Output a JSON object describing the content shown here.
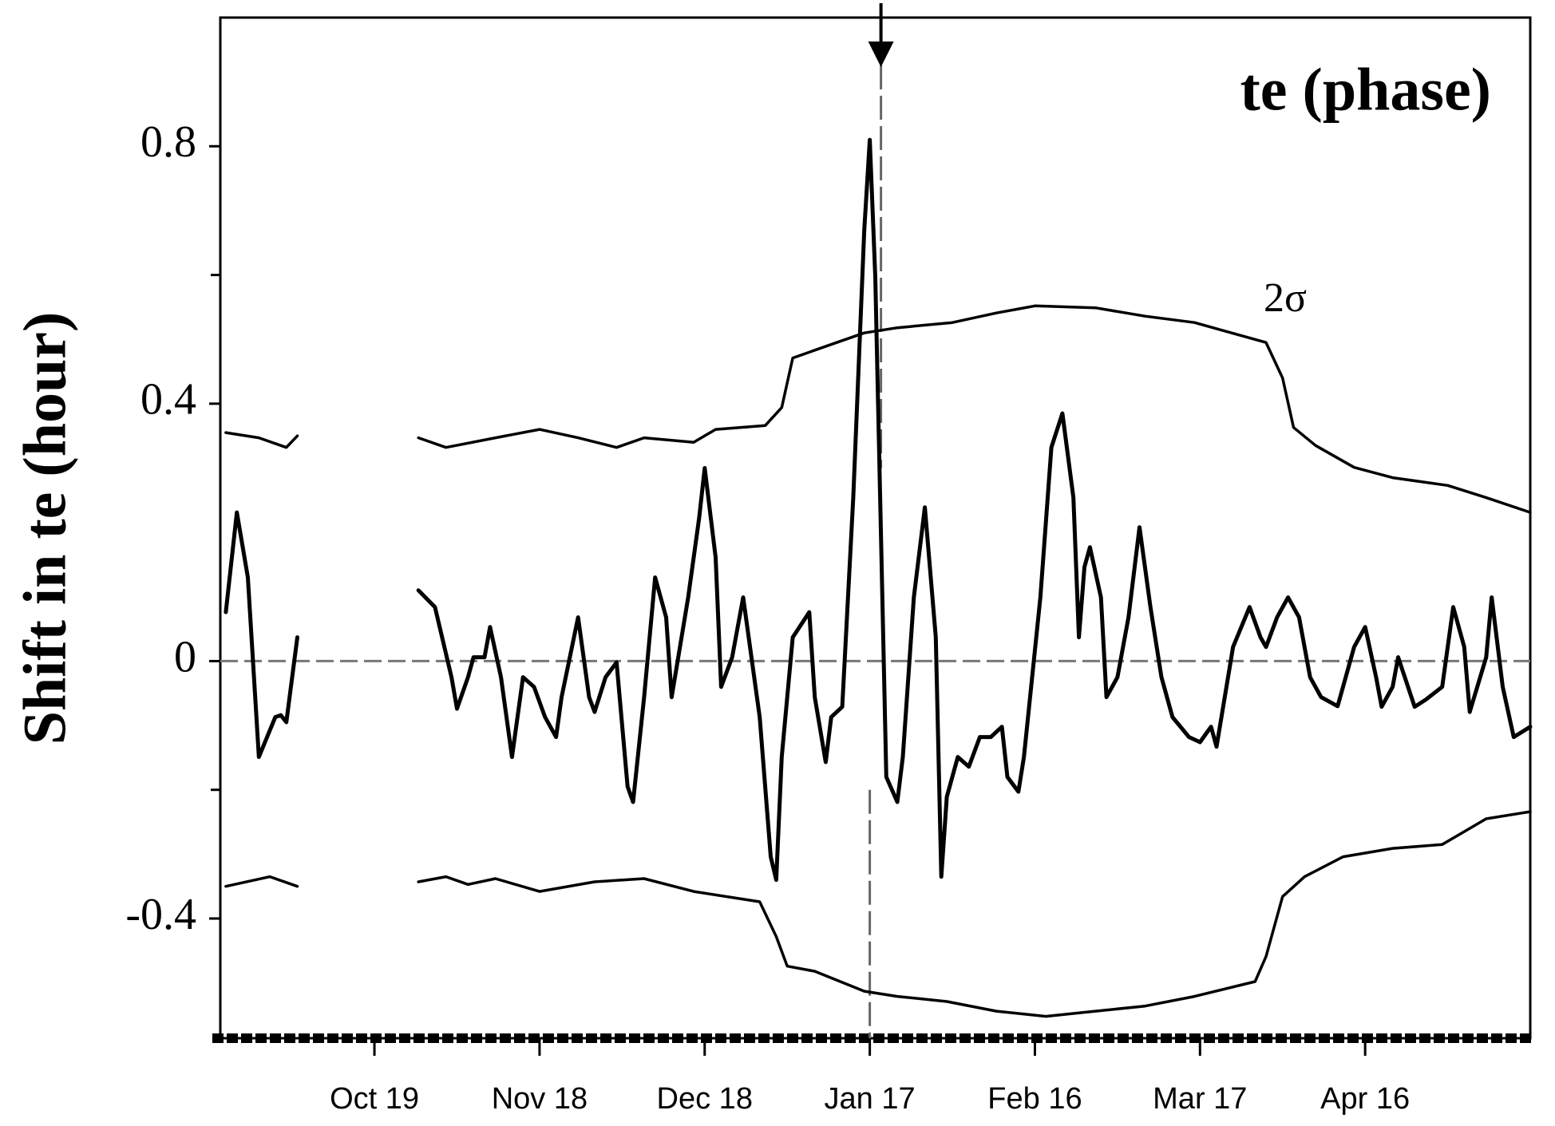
{
  "chart_data": {
    "type": "line",
    "title": "te (phase)",
    "y_label": "Shift in te (hour)",
    "annotation": "2σ",
    "xlim": [
      "Sep 21",
      "May 16"
    ],
    "xticks": [
      "Oct 19",
      "Nov 18",
      "Dec 18",
      "Jan 17",
      "Feb 16",
      "Mar 17",
      "Apr 16"
    ],
    "ylim": [
      -0.586,
      1.0
    ],
    "yticks": [
      -0.4,
      0,
      0.4,
      0.8
    ],
    "yminorticks": [
      -0.2,
      0.6
    ],
    "vline": "Jan 17",
    "series": [
      {
        "color": "#000000",
        "x": [
          "Sep 22",
          "Sep 24",
          "Sep 26",
          "Sep 28",
          "Oct 1",
          "Oct 2",
          "Oct 3",
          "Oct 5",
          "Oct 16",
          "Oct 27",
          "Oct 30",
          "Nov 2",
          "Nov 3",
          "Nov 5",
          "Nov 6",
          "Nov 8",
          "Nov 9",
          "Nov 11",
          "Nov 13",
          "Nov 15",
          "Nov 17",
          "Nov 19",
          "Nov 21",
          "Nov 22",
          "Nov 25",
          "Nov 27",
          "Nov 28",
          "Nov 30",
          "Dec 2",
          "Dec 4",
          "Dec 5",
          "Dec 7",
          "Dec 9",
          "Dec 11",
          "Dec 12",
          "Dec 15",
          "Dec 17",
          "Dec 18",
          "Dec 20",
          "Dec 21",
          "Dec 23",
          "Dec 25",
          "Dec 28",
          "Dec 30",
          "Dec 31",
          "Jan 1",
          "Jan 3",
          "Jan 6",
          "Jan 7",
          "Jan 9",
          "Jan 10",
          "Jan 12",
          "Jan 14",
          "Jan 16",
          "Jan 17",
          "Jan 18",
          "Jan 20",
          "Jan 22",
          "Jan 23",
          "Jan 25",
          "Jan 27",
          "Jan 29",
          "Jan 30",
          "Jan 31",
          "Feb 2",
          "Feb 4",
          "Feb 6",
          "Feb 8",
          "Feb 10",
          "Feb 11",
          "Feb 13",
          "Feb 14",
          "Feb 17",
          "Feb 19",
          "Feb 21",
          "Feb 23",
          "Feb 24",
          "Feb 25",
          "Feb 26",
          "Feb 28",
          "Feb 29",
          "Mar 2",
          "Mar 4",
          "Mar 6",
          "Mar 8",
          "Mar 10",
          "Mar 12",
          "Mar 15",
          "Mar 17",
          "Mar 19",
          "Mar 20",
          "Mar 23",
          "Mar 26",
          "Mar 28",
          "Mar 29",
          "Mar 31",
          "Apr 2",
          "Apr 4",
          "Apr 6",
          "Apr 8",
          "Apr 11",
          "Apr 14",
          "Apr 16",
          "Apr 18",
          "Apr 19",
          "Apr 21",
          "Apr 22",
          "Apr 25",
          "Apr 27",
          "Apr 30",
          "May 2",
          "May 4",
          "May 5",
          "May 8",
          "May 9",
          "May 11",
          "May 13",
          "May 16"
        ],
        "values": [
          0.076,
          0.231,
          0.13,
          -0.149,
          -0.087,
          -0.084,
          -0.095,
          0.037,
          null,
          0.11,
          0.084,
          -0.025,
          -0.074,
          -0.025,
          0.006,
          0.006,
          0.053,
          -0.025,
          -0.149,
          -0.025,
          -0.04,
          -0.087,
          -0.118,
          -0.056,
          0.068,
          -0.056,
          -0.079,
          -0.025,
          -0.002,
          -0.195,
          -0.219,
          -0.056,
          0.13,
          0.068,
          -0.056,
          0.099,
          0.223,
          0.3,
          0.161,
          -0.04,
          0.006,
          0.099,
          -0.087,
          -0.304,
          -0.34,
          -0.149,
          0.037,
          0.076,
          -0.056,
          -0.157,
          -0.087,
          -0.071,
          0.254,
          0.67,
          0.81,
          0.597,
          -0.18,
          -0.219,
          -0.149,
          0.099,
          0.239,
          0.037,
          -0.335,
          -0.211,
          -0.149,
          -0.164,
          -0.118,
          -0.118,
          -0.102,
          -0.18,
          -0.203,
          -0.149,
          0.099,
          0.332,
          0.385,
          0.254,
          0.037,
          0.146,
          0.177,
          0.099,
          -0.056,
          -0.025,
          0.068,
          0.208,
          0.084,
          -0.025,
          -0.087,
          -0.118,
          -0.126,
          -0.102,
          -0.133,
          0.022,
          0.084,
          0.037,
          0.022,
          0.068,
          0.099,
          0.068,
          -0.025,
          -0.056,
          -0.07,
          0.022,
          0.053,
          -0.025,
          -0.071,
          -0.04,
          0.006,
          -0.071,
          -0.06,
          -0.04,
          0.084,
          0.022,
          -0.079,
          0.006,
          0.099,
          -0.04,
          -0.118,
          -0.102
        ]
      },
      {
        "color": "#000000",
        "x": [
          "Sep 22",
          "Sep 28",
          "Oct 3",
          "Oct 5",
          "Oct 16",
          "Oct 27",
          "Nov 1",
          "Nov 10",
          "Nov 18",
          "Nov 25",
          "Dec 2",
          "Dec 7",
          "Dec 16",
          "Dec 20",
          "Dec 29",
          "Jan 1",
          "Jan 3",
          "Jan 11",
          "Jan 16",
          "Jan 22",
          "Feb 1",
          "Feb 9",
          "Feb 16",
          "Feb 27",
          "Mar 7",
          "Mar 16",
          "Mar 29",
          "Apr 1",
          "Apr 3",
          "Apr 7",
          "Apr 14",
          "Apr 21",
          "May 1",
          "May 8",
          "May 16"
        ],
        "values": [
          0.355,
          0.347,
          0.332,
          0.35,
          null,
          0.347,
          0.332,
          0.347,
          0.36,
          0.347,
          0.332,
          0.347,
          0.34,
          0.36,
          0.366,
          0.394,
          0.471,
          0.495,
          0.51,
          0.518,
          0.526,
          0.541,
          0.552,
          0.549,
          0.536,
          0.526,
          0.495,
          0.44,
          0.363,
          0.335,
          0.301,
          0.285,
          0.273,
          0.254,
          0.231
        ]
      },
      {
        "color": "#000000",
        "x": [
          "Sep 22",
          "Sep 30",
          "Oct 5",
          "Oct 16",
          "Oct 27",
          "Nov 1",
          "Nov 5",
          "Nov 10",
          "Nov 18",
          "Nov 28",
          "Dec 7",
          "Dec 16",
          "Dec 28",
          "Dec 31",
          "Jan 2",
          "Jan 7",
          "Jan 16",
          "Jan 22",
          "Jan 31",
          "Feb 9",
          "Feb 18",
          "Feb 27",
          "Mar 7",
          "Mar 16",
          "Mar 27",
          "Mar 29",
          "Apr 1",
          "Apr 5",
          "Apr 12",
          "Apr 21",
          "Apr 30",
          "May 4",
          "May 8",
          "May 16"
        ],
        "values": [
          -0.35,
          -0.335,
          -0.35,
          null,
          -0.343,
          -0.335,
          -0.347,
          -0.338,
          -0.358,
          -0.343,
          -0.338,
          -0.358,
          -0.374,
          -0.428,
          -0.474,
          -0.482,
          -0.513,
          -0.521,
          -0.529,
          -0.544,
          -0.552,
          -0.544,
          -0.536,
          -0.521,
          -0.498,
          -0.459,
          -0.366,
          -0.335,
          -0.304,
          -0.291,
          -0.285,
          -0.265,
          -0.245,
          -0.234
        ]
      }
    ]
  }
}
